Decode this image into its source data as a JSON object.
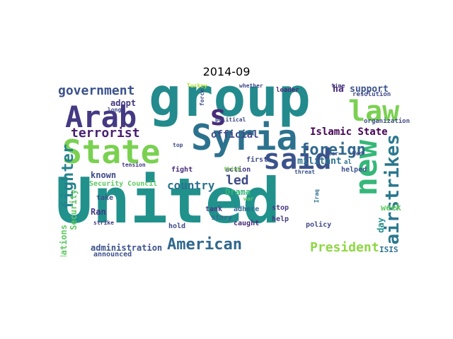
{
  "title": "2014-09",
  "colors": {
    "background": "#ffffff",
    "title": "#000000"
  },
  "words": [
    {
      "text": "United",
      "color": "#21918c"
    },
    {
      "text": "group",
      "color": "#238a8d"
    },
    {
      "text": "State",
      "color": "#7ad151"
    },
    {
      "text": "Syria",
      "color": "#2c728e"
    },
    {
      "text": "said",
      "color": "#3b528b"
    },
    {
      "text": "Arab",
      "color": "#443983"
    },
    {
      "text": "new",
      "color": "#35b779"
    },
    {
      "text": "law",
      "color": "#7ad151"
    },
    {
      "text": "s",
      "color": "#472c7a"
    },
    {
      "text": "airstrikes",
      "color": "#2a788e"
    },
    {
      "text": "American",
      "color": "#31688e"
    },
    {
      "text": "fighter",
      "color": "#26828e"
    },
    {
      "text": "foreign",
      "color": "#31688e"
    },
    {
      "text": "government",
      "color": "#3b528b"
    },
    {
      "text": "terrorist",
      "color": "#481f70"
    },
    {
      "text": "President",
      "color": "#8fd744"
    },
    {
      "text": "Islamic State",
      "color": "#440154"
    },
    {
      "text": "country",
      "color": "#2c728e"
    },
    {
      "text": "led",
      "color": "#3e4a89"
    },
    {
      "text": "support",
      "color": "#3b528b"
    },
    {
      "text": "official",
      "color": "#3e4a89"
    },
    {
      "text": "ha",
      "color": "#482878"
    },
    {
      "text": "militant",
      "color": "#2c728e"
    },
    {
      "text": "administration",
      "color": "#3b528b"
    },
    {
      "text": "Nations",
      "color": "#5ec962"
    },
    {
      "text": "Security",
      "color": "#5ec962"
    },
    {
      "text": "Drama",
      "color": "#35b779"
    },
    {
      "text": "adopt",
      "color": "#443983"
    },
    {
      "text": "known",
      "color": "#3e4a89"
    },
    {
      "text": "Ran",
      "color": "#443983"
    },
    {
      "text": "week",
      "color": "#5ec962"
    },
    {
      "text": "day",
      "color": "#21918c"
    },
    {
      "text": "ISIS",
      "color": "#2c728e"
    },
    {
      "text": "Security Council",
      "color": "#5ec962"
    },
    {
      "text": "announced",
      "color": "#3b528b"
    },
    {
      "text": "policy",
      "color": "#3e4a89"
    },
    {
      "text": "stop",
      "color": "#443983"
    },
    {
      "text": "help",
      "color": "#443983"
    },
    {
      "text": "adhere",
      "color": "#31688e"
    },
    {
      "text": "caught",
      "color": "#482878"
    },
    {
      "text": "action",
      "color": "#443983"
    },
    {
      "text": "first",
      "color": "#3e4a89"
    },
    {
      "text": "hold",
      "color": "#3e4a89"
    },
    {
      "text": "fight",
      "color": "#472c7a"
    },
    {
      "text": "take",
      "color": "#3b528b"
    },
    {
      "text": "tank",
      "color": "#443983"
    },
    {
      "text": "story",
      "color": "#31688e"
    },
    {
      "text": "helped",
      "color": "#3b528b"
    },
    {
      "text": "organization",
      "color": "#3e4a89"
    },
    {
      "text": "resolution",
      "color": "#3e4a89"
    },
    {
      "text": "leader",
      "color": "#472c7a"
    },
    {
      "text": "time",
      "color": "#443983"
    },
    {
      "text": "whether",
      "color": "#3e4a89"
    },
    {
      "text": "Turkey",
      "color": "#b5de2b"
    },
    {
      "text": "Later",
      "color": "#3b528b"
    },
    {
      "text": "long",
      "color": "#3e4a89"
    },
    {
      "text": "strike",
      "color": "#443983"
    },
    {
      "text": "tension",
      "color": "#443983"
    },
    {
      "text": "top",
      "color": "#3e4a89"
    },
    {
      "text": "think",
      "color": "#7ad151"
    },
    {
      "text": "force",
      "color": "#3e4a89"
    },
    {
      "text": "threat",
      "color": "#3b528b"
    },
    {
      "text": "war",
      "color": "#5ec962"
    },
    {
      "text": "political",
      "color": "#3e4a89"
    },
    {
      "text": "al",
      "color": "#2c728e"
    },
    {
      "text": "Wed",
      "color": "#3e4a89"
    },
    {
      "text": "Iraq",
      "color": "#2c728e"
    }
  ]
}
